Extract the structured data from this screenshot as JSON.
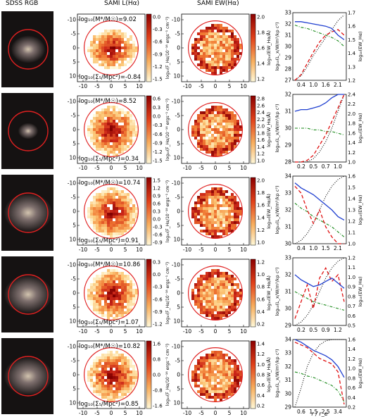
{
  "headers": [
    "SDSS RGB",
    "SAMI L(Hα)",
    "SAMI EW(Hα)"
  ],
  "map_ylabel": "log₁₀(F_Hα/10⁻¹⁸ ergs⁻¹ cm⁻²)",
  "ew_ylabel": "log₁₀(EW_Hα/Å)",
  "prof_ylabel_left": "log₁₀(L_x/W/m²/kp c²)",
  "prof_ylabel_right": "log₁₀(EW_Hα)",
  "prof_xlabel": "r / r_e",
  "map_xticks": [
    "-10",
    "-5",
    "0",
    "5",
    "10"
  ],
  "map_yticks": [
    "-10",
    "-5",
    "0",
    "5",
    "10"
  ],
  "colors": {
    "blue": "#1f3fd0",
    "red": "#e01010",
    "green": "#1a8a1a",
    "dotted": "#000000",
    "aperture": "#e02020"
  },
  "chart_data": [
    {
      "type": "table",
      "row": 1,
      "mass_label": "log₁₀(M*/M☉)=9.02",
      "env_label": "log₁₀(Σ₅/Mpc²)=-0.84",
      "flux_cbar": [
        "0.0",
        "-0.3",
        "-0.6",
        "-0.9",
        "-1.2",
        "-1.5"
      ],
      "ew_cbar": [
        "2.0",
        "1.8",
        "1.6",
        "1.4",
        "1.2"
      ],
      "prof_xticks": [
        "0.4",
        "1.0",
        "1.6",
        "2.1"
      ],
      "prof_yleft": [
        "27",
        "28",
        "29",
        "30",
        "31",
        "32",
        "33"
      ],
      "prof_yright": [
        "1.2",
        "1.3",
        "1.4",
        "1.5",
        "1.6",
        "1.7"
      ],
      "series": {
        "blue": [
          32.2,
          32.2,
          32.1,
          32.0,
          31.9,
          31.8,
          31.6,
          31.0,
          30.6
        ],
        "green": [
          31.9,
          31.7,
          31.6,
          31.4,
          31.2,
          31.0,
          30.8,
          30.5,
          30.0
        ],
        "red": [
          27.0,
          27.5,
          28.5,
          29.5,
          30.4,
          31.0,
          31.3,
          31.5,
          31.0
        ],
        "dotted": [
          27.0,
          27.4,
          28.2,
          29.2,
          30.0,
          30.8,
          31.5,
          32.3,
          32.8
        ]
      }
    },
    {
      "type": "table",
      "row": 2,
      "mass_label": "log₁₀(M*/M☉)=8.52",
      "env_label": "log₁₀(Σ₅/Mpc²)=0.34",
      "flux_cbar": [
        "0.6",
        "0.3",
        "0.0",
        "-0.3",
        "-0.6",
        "-0.9",
        "-1.2",
        "-1.5"
      ],
      "ew_cbar": [
        "2.8",
        "2.6",
        "2.4",
        "2.2",
        "2.0",
        "1.8",
        "1.6",
        "1.4",
        "1.2",
        "1.0"
      ],
      "prof_xticks": [
        "0.2",
        "0.5",
        "0.7",
        "1.0"
      ],
      "prof_yleft": [
        "28",
        "29",
        "30",
        "31",
        "32"
      ],
      "prof_yright": [
        "1.0",
        "1.2",
        "1.4",
        "1.6",
        "1.8",
        "2.0",
        "2.2",
        "2.4"
      ],
      "series": {
        "blue": [
          31.0,
          31.1,
          31.1,
          31.2,
          31.3,
          31.5,
          31.8,
          32.1,
          32.3
        ],
        "green": [
          30.0,
          30.0,
          30.0,
          29.9,
          29.9,
          29.8,
          29.8,
          29.7,
          29.6
        ],
        "red": [
          28.0,
          28.0,
          28.1,
          28.4,
          29.0,
          29.6,
          30.4,
          31.2,
          32.2
        ],
        "dotted": [
          28.0,
          28.0,
          28.0,
          28.2,
          28.6,
          29.2,
          30.0,
          31.0,
          32.0
        ]
      }
    },
    {
      "type": "table",
      "row": 3,
      "mass_label": "log₁₀(M*/M☉)=10.74",
      "env_label": "log₁₀(Σ₅/Mpc²)=0.91",
      "flux_cbar": [
        "1.5",
        "1.2",
        "0.9",
        "0.6",
        "0.3",
        "0.0",
        "-0.3",
        "-0.6",
        "-0.9"
      ],
      "ew_cbar": [
        "2.0",
        "1.8",
        "1.6",
        "1.4",
        "1.2",
        "1.0"
      ],
      "prof_xticks": [
        "0.4",
        "1.0",
        "1.5",
        "2.1"
      ],
      "prof_yleft": [
        "30",
        "31",
        "32",
        "33",
        "34"
      ],
      "prof_yright": [
        "1.0",
        "1.1",
        "1.2",
        "1.3",
        "1.4",
        "1.5",
        "1.6"
      ],
      "series": {
        "blue": [
          33.6,
          33.3,
          33.1,
          32.9,
          32.6,
          32.3,
          32.0,
          31.6,
          31.4
        ],
        "green": [
          32.4,
          32.1,
          31.9,
          31.6,
          31.4,
          31.2,
          31.0,
          30.7,
          30.4
        ],
        "red": [
          33.4,
          33.0,
          32.0,
          31.2,
          32.0,
          31.0,
          30.4,
          30.0,
          29.9
        ],
        "dotted": [
          30.0,
          30.2,
          30.6,
          31.2,
          32.0,
          32.8,
          33.4,
          33.8,
          34.0
        ]
      }
    },
    {
      "type": "table",
      "row": 4,
      "mass_label": "log₁₀(M*/M☉)=10.86",
      "env_label": "log₁₀(Σ₅/Mpc²)=1.07",
      "flux_cbar": [
        "0.3",
        "0.0",
        "-0.3",
        "-0.6",
        "-0.9",
        "-1.2"
      ],
      "ew_cbar": [
        "1.2",
        "1.0",
        "0.8",
        "0.6",
        "0.4",
        "0.2"
      ],
      "prof_xticks": [
        "0.2",
        "0.5",
        "0.9",
        "1.2"
      ],
      "prof_yleft": [
        "29",
        "30",
        "31",
        "32",
        "33"
      ],
      "prof_yright": [
        "0.5",
        "0.6",
        "0.7",
        "0.8",
        "0.9",
        "1.0",
        "1.1",
        "1.2"
      ],
      "series": {
        "blue": [
          32.0,
          31.7,
          31.5,
          31.3,
          31.4,
          31.6,
          31.8,
          31.5,
          31.2
        ],
        "green": [
          31.0,
          30.8,
          30.6,
          30.4,
          30.3,
          30.2,
          30.1,
          30.0,
          29.9
        ],
        "red": [
          29.4,
          30.4,
          31.4,
          30.0,
          31.8,
          32.4,
          31.6,
          32.0,
          30.4
        ],
        "dotted": [
          29.0,
          29.2,
          29.6,
          30.2,
          31.0,
          31.8,
          32.4,
          32.8,
          33.0
        ]
      }
    },
    {
      "type": "table",
      "row": 5,
      "mass_label": "log₁₀(M*/M☉)=10.82",
      "env_label": "log₁₀(Σ₅/Mpc²)=0.85",
      "flux_cbar": [
        "1.6",
        "0.8",
        "0.0",
        "-0.8",
        "-1.6"
      ],
      "ew_cbar": [
        "1.4",
        "1.2",
        "1.0",
        "0.8",
        "0.6",
        "0.4",
        "0.2"
      ],
      "prof_xticks": [
        "0.6",
        "1.5",
        "2.5",
        "3.4"
      ],
      "prof_yleft": [
        "29",
        "30",
        "31",
        "32",
        "33",
        "34"
      ],
      "prof_yright": [
        "0.2",
        "0.4",
        "0.6",
        "0.8",
        "1.0",
        "1.2",
        "1.4",
        "1.6"
      ],
      "series": {
        "blue": [
          34.0,
          33.8,
          33.5,
          33.2,
          33.0,
          32.8,
          32.5,
          32.0,
          31.2
        ],
        "green": [
          31.6,
          31.5,
          31.3,
          31.2,
          31.0,
          30.8,
          30.6,
          30.2,
          29.4
        ],
        "red": [
          33.8,
          33.6,
          33.4,
          33.0,
          32.6,
          32.4,
          32.2,
          31.6,
          29.2
        ],
        "dotted": [
          28.8,
          30.4,
          32.0,
          33.0,
          33.6,
          33.9,
          34.0,
          34.0,
          34.0
        ]
      }
    }
  ]
}
